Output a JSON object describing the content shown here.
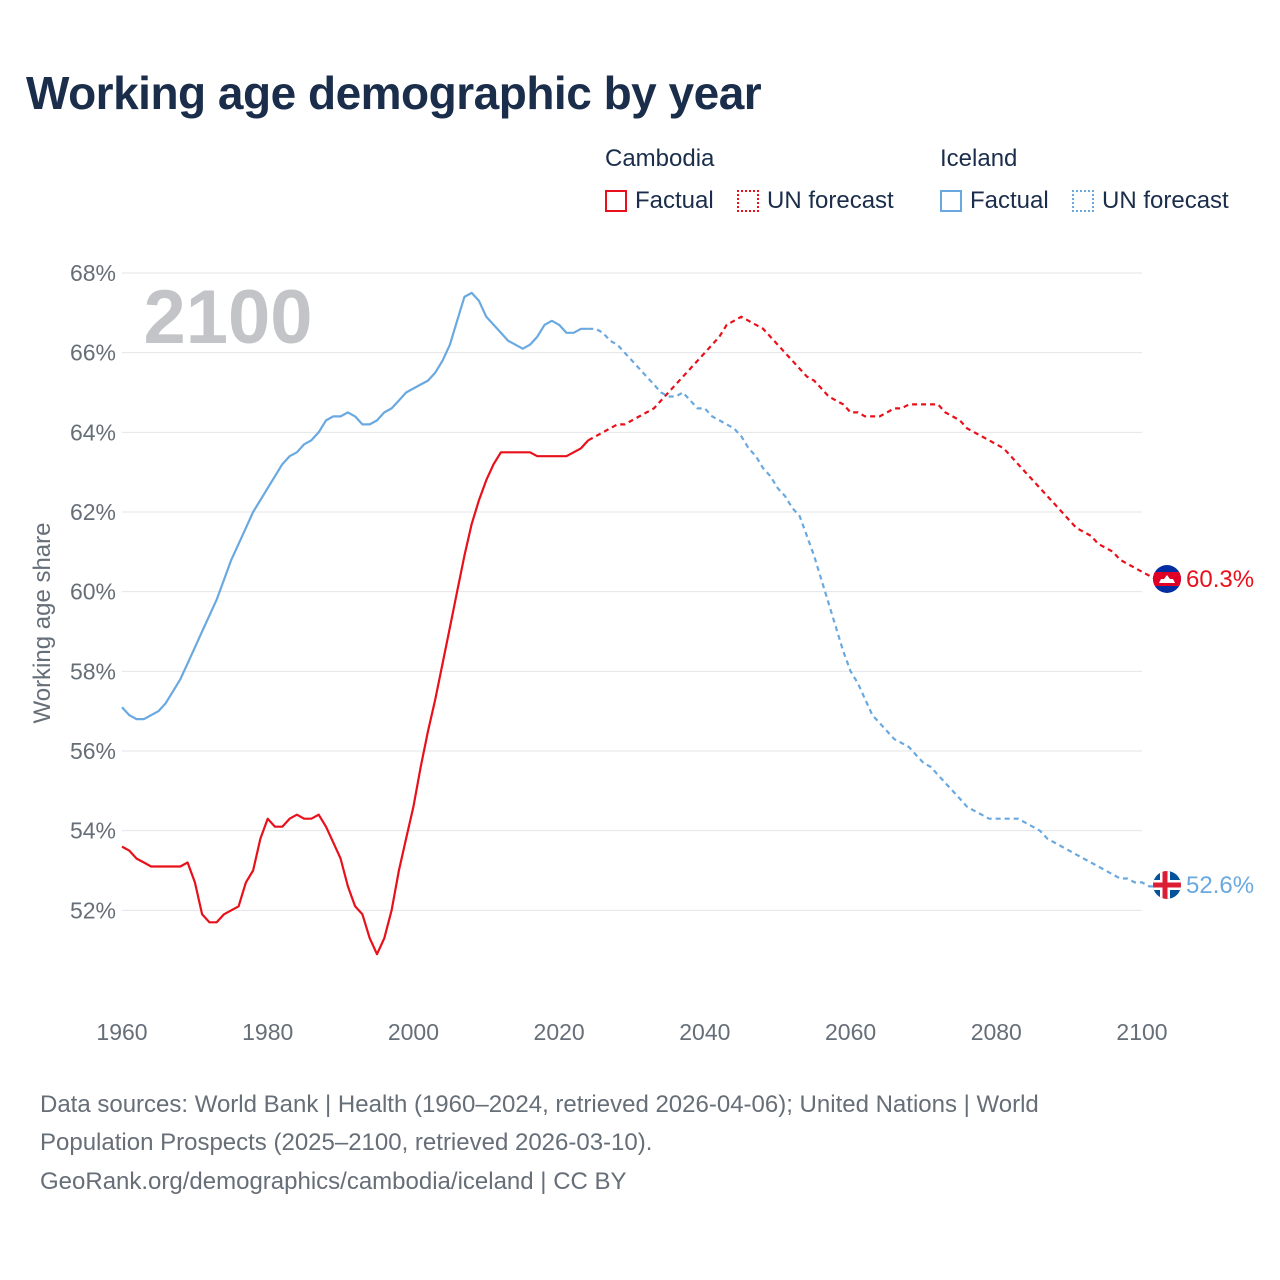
{
  "title": "Working age demographic by year",
  "legend": {
    "groups": [
      {
        "name": "Cambodia",
        "color": "#e8101a",
        "factual_label": "Factual",
        "forecast_label": "UN forecast"
      },
      {
        "name": "Iceland",
        "color": "#6aa9e0",
        "factual_label": "Factual",
        "forecast_label": "UN forecast"
      }
    ]
  },
  "year_overlay": "2100",
  "end_labels": {
    "cambodia": "60.3%",
    "iceland": "52.6%"
  },
  "source": {
    "line1": "Data sources: World Bank | Health (1960–2024, retrieved 2026-04-06); United Nations | World",
    "line2": "Population Prospects (2025–2100, retrieved 2026-03-10).",
    "line3": "GeoRank.org/demographics/cambodia/iceland | CC BY"
  },
  "chart_data": {
    "type": "line",
    "title": "Working age demographic by year",
    "xlabel": "",
    "ylabel": "Working age share",
    "xlim": [
      1960,
      2100
    ],
    "ylim": [
      50,
      68
    ],
    "x_ticks": [
      "1960",
      "1980",
      "2000",
      "2020",
      "2040",
      "2060",
      "2080",
      "2100"
    ],
    "y_ticks": [
      "52%",
      "54%",
      "56%",
      "58%",
      "60%",
      "62%",
      "64%",
      "66%",
      "68%"
    ],
    "factual_end_year": 2024,
    "series": [
      {
        "name": "Cambodia",
        "color": "#e8101a",
        "points": [
          [
            1960,
            53.6
          ],
          [
            1961,
            53.5
          ],
          [
            1962,
            53.3
          ],
          [
            1963,
            53.2
          ],
          [
            1964,
            53.1
          ],
          [
            1965,
            53.1
          ],
          [
            1966,
            53.1
          ],
          [
            1967,
            53.1
          ],
          [
            1968,
            53.1
          ],
          [
            1969,
            53.2
          ],
          [
            1970,
            52.7
          ],
          [
            1971,
            51.9
          ],
          [
            1972,
            51.7
          ],
          [
            1973,
            51.7
          ],
          [
            1974,
            51.9
          ],
          [
            1975,
            52.0
          ],
          [
            1976,
            52.1
          ],
          [
            1977,
            52.7
          ],
          [
            1978,
            53.0
          ],
          [
            1979,
            53.8
          ],
          [
            1980,
            54.3
          ],
          [
            1981,
            54.1
          ],
          [
            1982,
            54.1
          ],
          [
            1983,
            54.3
          ],
          [
            1984,
            54.4
          ],
          [
            1985,
            54.3
          ],
          [
            1986,
            54.3
          ],
          [
            1987,
            54.4
          ],
          [
            1988,
            54.1
          ],
          [
            1989,
            53.7
          ],
          [
            1990,
            53.3
          ],
          [
            1991,
            52.6
          ],
          [
            1992,
            52.1
          ],
          [
            1993,
            51.9
          ],
          [
            1994,
            51.3
          ],
          [
            1995,
            50.9
          ],
          [
            1996,
            51.3
          ],
          [
            1997,
            52.0
          ],
          [
            1998,
            53.0
          ],
          [
            1999,
            53.8
          ],
          [
            2000,
            54.6
          ],
          [
            2001,
            55.6
          ],
          [
            2002,
            56.5
          ],
          [
            2003,
            57.3
          ],
          [
            2004,
            58.2
          ],
          [
            2005,
            59.1
          ],
          [
            2006,
            60.0
          ],
          [
            2007,
            60.9
          ],
          [
            2008,
            61.7
          ],
          [
            2009,
            62.3
          ],
          [
            2010,
            62.8
          ],
          [
            2011,
            63.2
          ],
          [
            2012,
            63.5
          ],
          [
            2013,
            63.5
          ],
          [
            2014,
            63.5
          ],
          [
            2015,
            63.5
          ],
          [
            2016,
            63.5
          ],
          [
            2017,
            63.4
          ],
          [
            2018,
            63.4
          ],
          [
            2019,
            63.4
          ],
          [
            2020,
            63.4
          ],
          [
            2021,
            63.4
          ],
          [
            2022,
            63.5
          ],
          [
            2023,
            63.6
          ],
          [
            2024,
            63.8
          ],
          [
            2025,
            63.9
          ],
          [
            2026,
            64.0
          ],
          [
            2027,
            64.1
          ],
          [
            2028,
            64.2
          ],
          [
            2029,
            64.2
          ],
          [
            2030,
            64.3
          ],
          [
            2031,
            64.4
          ],
          [
            2032,
            64.5
          ],
          [
            2033,
            64.6
          ],
          [
            2034,
            64.8
          ],
          [
            2035,
            65.0
          ],
          [
            2036,
            65.2
          ],
          [
            2037,
            65.4
          ],
          [
            2038,
            65.6
          ],
          [
            2039,
            65.8
          ],
          [
            2040,
            66.0
          ],
          [
            2041,
            66.2
          ],
          [
            2042,
            66.4
          ],
          [
            2043,
            66.7
          ],
          [
            2044,
            66.8
          ],
          [
            2045,
            66.9
          ],
          [
            2046,
            66.8
          ],
          [
            2047,
            66.7
          ],
          [
            2048,
            66.6
          ],
          [
            2049,
            66.4
          ],
          [
            2050,
            66.2
          ],
          [
            2051,
            66.0
          ],
          [
            2052,
            65.8
          ],
          [
            2053,
            65.6
          ],
          [
            2054,
            65.4
          ],
          [
            2055,
            65.3
          ],
          [
            2056,
            65.1
          ],
          [
            2057,
            64.9
          ],
          [
            2058,
            64.8
          ],
          [
            2059,
            64.7
          ],
          [
            2060,
            64.5
          ],
          [
            2061,
            64.5
          ],
          [
            2062,
            64.4
          ],
          [
            2063,
            64.4
          ],
          [
            2064,
            64.4
          ],
          [
            2065,
            64.5
          ],
          [
            2066,
            64.6
          ],
          [
            2067,
            64.6
          ],
          [
            2068,
            64.7
          ],
          [
            2069,
            64.7
          ],
          [
            2070,
            64.7
          ],
          [
            2071,
            64.7
          ],
          [
            2072,
            64.7
          ],
          [
            2073,
            64.5
          ],
          [
            2074,
            64.4
          ],
          [
            2075,
            64.3
          ],
          [
            2076,
            64.1
          ],
          [
            2077,
            64.0
          ],
          [
            2078,
            63.9
          ],
          [
            2079,
            63.8
          ],
          [
            2080,
            63.7
          ],
          [
            2081,
            63.6
          ],
          [
            2082,
            63.4
          ],
          [
            2083,
            63.2
          ],
          [
            2084,
            63.0
          ],
          [
            2085,
            62.8
          ],
          [
            2086,
            62.6
          ],
          [
            2087,
            62.4
          ],
          [
            2088,
            62.2
          ],
          [
            2089,
            62.0
          ],
          [
            2090,
            61.8
          ],
          [
            2091,
            61.6
          ],
          [
            2092,
            61.5
          ],
          [
            2093,
            61.4
          ],
          [
            2094,
            61.2
          ],
          [
            2095,
            61.1
          ],
          [
            2096,
            61.0
          ],
          [
            2097,
            60.8
          ],
          [
            2098,
            60.7
          ],
          [
            2099,
            60.6
          ],
          [
            2100,
            60.5
          ],
          [
            2101,
            60.4
          ],
          [
            2102,
            60.3
          ],
          [
            2103,
            60.3
          ]
        ]
      },
      {
        "name": "Iceland",
        "color": "#6aa9e0",
        "points": [
          [
            1960,
            57.1
          ],
          [
            1961,
            56.9
          ],
          [
            1962,
            56.8
          ],
          [
            1963,
            56.8
          ],
          [
            1964,
            56.9
          ],
          [
            1965,
            57.0
          ],
          [
            1966,
            57.2
          ],
          [
            1967,
            57.5
          ],
          [
            1968,
            57.8
          ],
          [
            1969,
            58.2
          ],
          [
            1970,
            58.6
          ],
          [
            1971,
            59.0
          ],
          [
            1972,
            59.4
          ],
          [
            1973,
            59.8
          ],
          [
            1974,
            60.3
          ],
          [
            1975,
            60.8
          ],
          [
            1976,
            61.2
          ],
          [
            1977,
            61.6
          ],
          [
            1978,
            62.0
          ],
          [
            1979,
            62.3
          ],
          [
            1980,
            62.6
          ],
          [
            1981,
            62.9
          ],
          [
            1982,
            63.2
          ],
          [
            1983,
            63.4
          ],
          [
            1984,
            63.5
          ],
          [
            1985,
            63.7
          ],
          [
            1986,
            63.8
          ],
          [
            1987,
            64.0
          ],
          [
            1988,
            64.3
          ],
          [
            1989,
            64.4
          ],
          [
            1990,
            64.4
          ],
          [
            1991,
            64.5
          ],
          [
            1992,
            64.4
          ],
          [
            1993,
            64.2
          ],
          [
            1994,
            64.2
          ],
          [
            1995,
            64.3
          ],
          [
            1996,
            64.5
          ],
          [
            1997,
            64.6
          ],
          [
            1998,
            64.8
          ],
          [
            1999,
            65.0
          ],
          [
            2000,
            65.1
          ],
          [
            2001,
            65.2
          ],
          [
            2002,
            65.3
          ],
          [
            2003,
            65.5
          ],
          [
            2004,
            65.8
          ],
          [
            2005,
            66.2
          ],
          [
            2006,
            66.8
          ],
          [
            2007,
            67.4
          ],
          [
            2008,
            67.5
          ],
          [
            2009,
            67.3
          ],
          [
            2010,
            66.9
          ],
          [
            2011,
            66.7
          ],
          [
            2012,
            66.5
          ],
          [
            2013,
            66.3
          ],
          [
            2014,
            66.2
          ],
          [
            2015,
            66.1
          ],
          [
            2016,
            66.2
          ],
          [
            2017,
            66.4
          ],
          [
            2018,
            66.7
          ],
          [
            2019,
            66.8
          ],
          [
            2020,
            66.7
          ],
          [
            2021,
            66.5
          ],
          [
            2022,
            66.5
          ],
          [
            2023,
            66.6
          ],
          [
            2024,
            66.6
          ],
          [
            2025,
            66.6
          ],
          [
            2026,
            66.5
          ],
          [
            2027,
            66.3
          ],
          [
            2028,
            66.2
          ],
          [
            2029,
            66.0
          ],
          [
            2030,
            65.8
          ],
          [
            2031,
            65.6
          ],
          [
            2032,
            65.4
          ],
          [
            2033,
            65.2
          ],
          [
            2034,
            65.0
          ],
          [
            2035,
            64.9
          ],
          [
            2036,
            64.9
          ],
          [
            2037,
            65.0
          ],
          [
            2038,
            64.8
          ],
          [
            2039,
            64.6
          ],
          [
            2040,
            64.6
          ],
          [
            2041,
            64.4
          ],
          [
            2042,
            64.3
          ],
          [
            2043,
            64.2
          ],
          [
            2044,
            64.1
          ],
          [
            2045,
            63.9
          ],
          [
            2046,
            63.6
          ],
          [
            2047,
            63.4
          ],
          [
            2048,
            63.1
          ],
          [
            2049,
            62.9
          ],
          [
            2050,
            62.6
          ],
          [
            2051,
            62.4
          ],
          [
            2052,
            62.1
          ],
          [
            2053,
            61.9
          ],
          [
            2054,
            61.4
          ],
          [
            2055,
            60.9
          ],
          [
            2056,
            60.3
          ],
          [
            2057,
            59.7
          ],
          [
            2058,
            59.1
          ],
          [
            2059,
            58.5
          ],
          [
            2060,
            58.0
          ],
          [
            2061,
            57.7
          ],
          [
            2062,
            57.3
          ],
          [
            2063,
            56.9
          ],
          [
            2064,
            56.7
          ],
          [
            2065,
            56.5
          ],
          [
            2066,
            56.3
          ],
          [
            2067,
            56.2
          ],
          [
            2068,
            56.1
          ],
          [
            2069,
            55.9
          ],
          [
            2070,
            55.7
          ],
          [
            2071,
            55.6
          ],
          [
            2072,
            55.4
          ],
          [
            2073,
            55.2
          ],
          [
            2074,
            55.0
          ],
          [
            2075,
            54.8
          ],
          [
            2076,
            54.6
          ],
          [
            2077,
            54.5
          ],
          [
            2078,
            54.4
          ],
          [
            2079,
            54.3
          ],
          [
            2080,
            54.3
          ],
          [
            2081,
            54.3
          ],
          [
            2082,
            54.3
          ],
          [
            2083,
            54.3
          ],
          [
            2084,
            54.2
          ],
          [
            2085,
            54.1
          ],
          [
            2086,
            54.0
          ],
          [
            2087,
            53.8
          ],
          [
            2088,
            53.7
          ],
          [
            2089,
            53.6
          ],
          [
            2090,
            53.5
          ],
          [
            2091,
            53.4
          ],
          [
            2092,
            53.3
          ],
          [
            2093,
            53.2
          ],
          [
            2094,
            53.1
          ],
          [
            2095,
            53.0
          ],
          [
            2096,
            52.9
          ],
          [
            2097,
            52.8
          ],
          [
            2098,
            52.8
          ],
          [
            2099,
            52.7
          ],
          [
            2100,
            52.7
          ],
          [
            2101,
            52.6
          ],
          [
            2102,
            52.6
          ],
          [
            2103,
            52.6
          ]
        ]
      }
    ]
  }
}
